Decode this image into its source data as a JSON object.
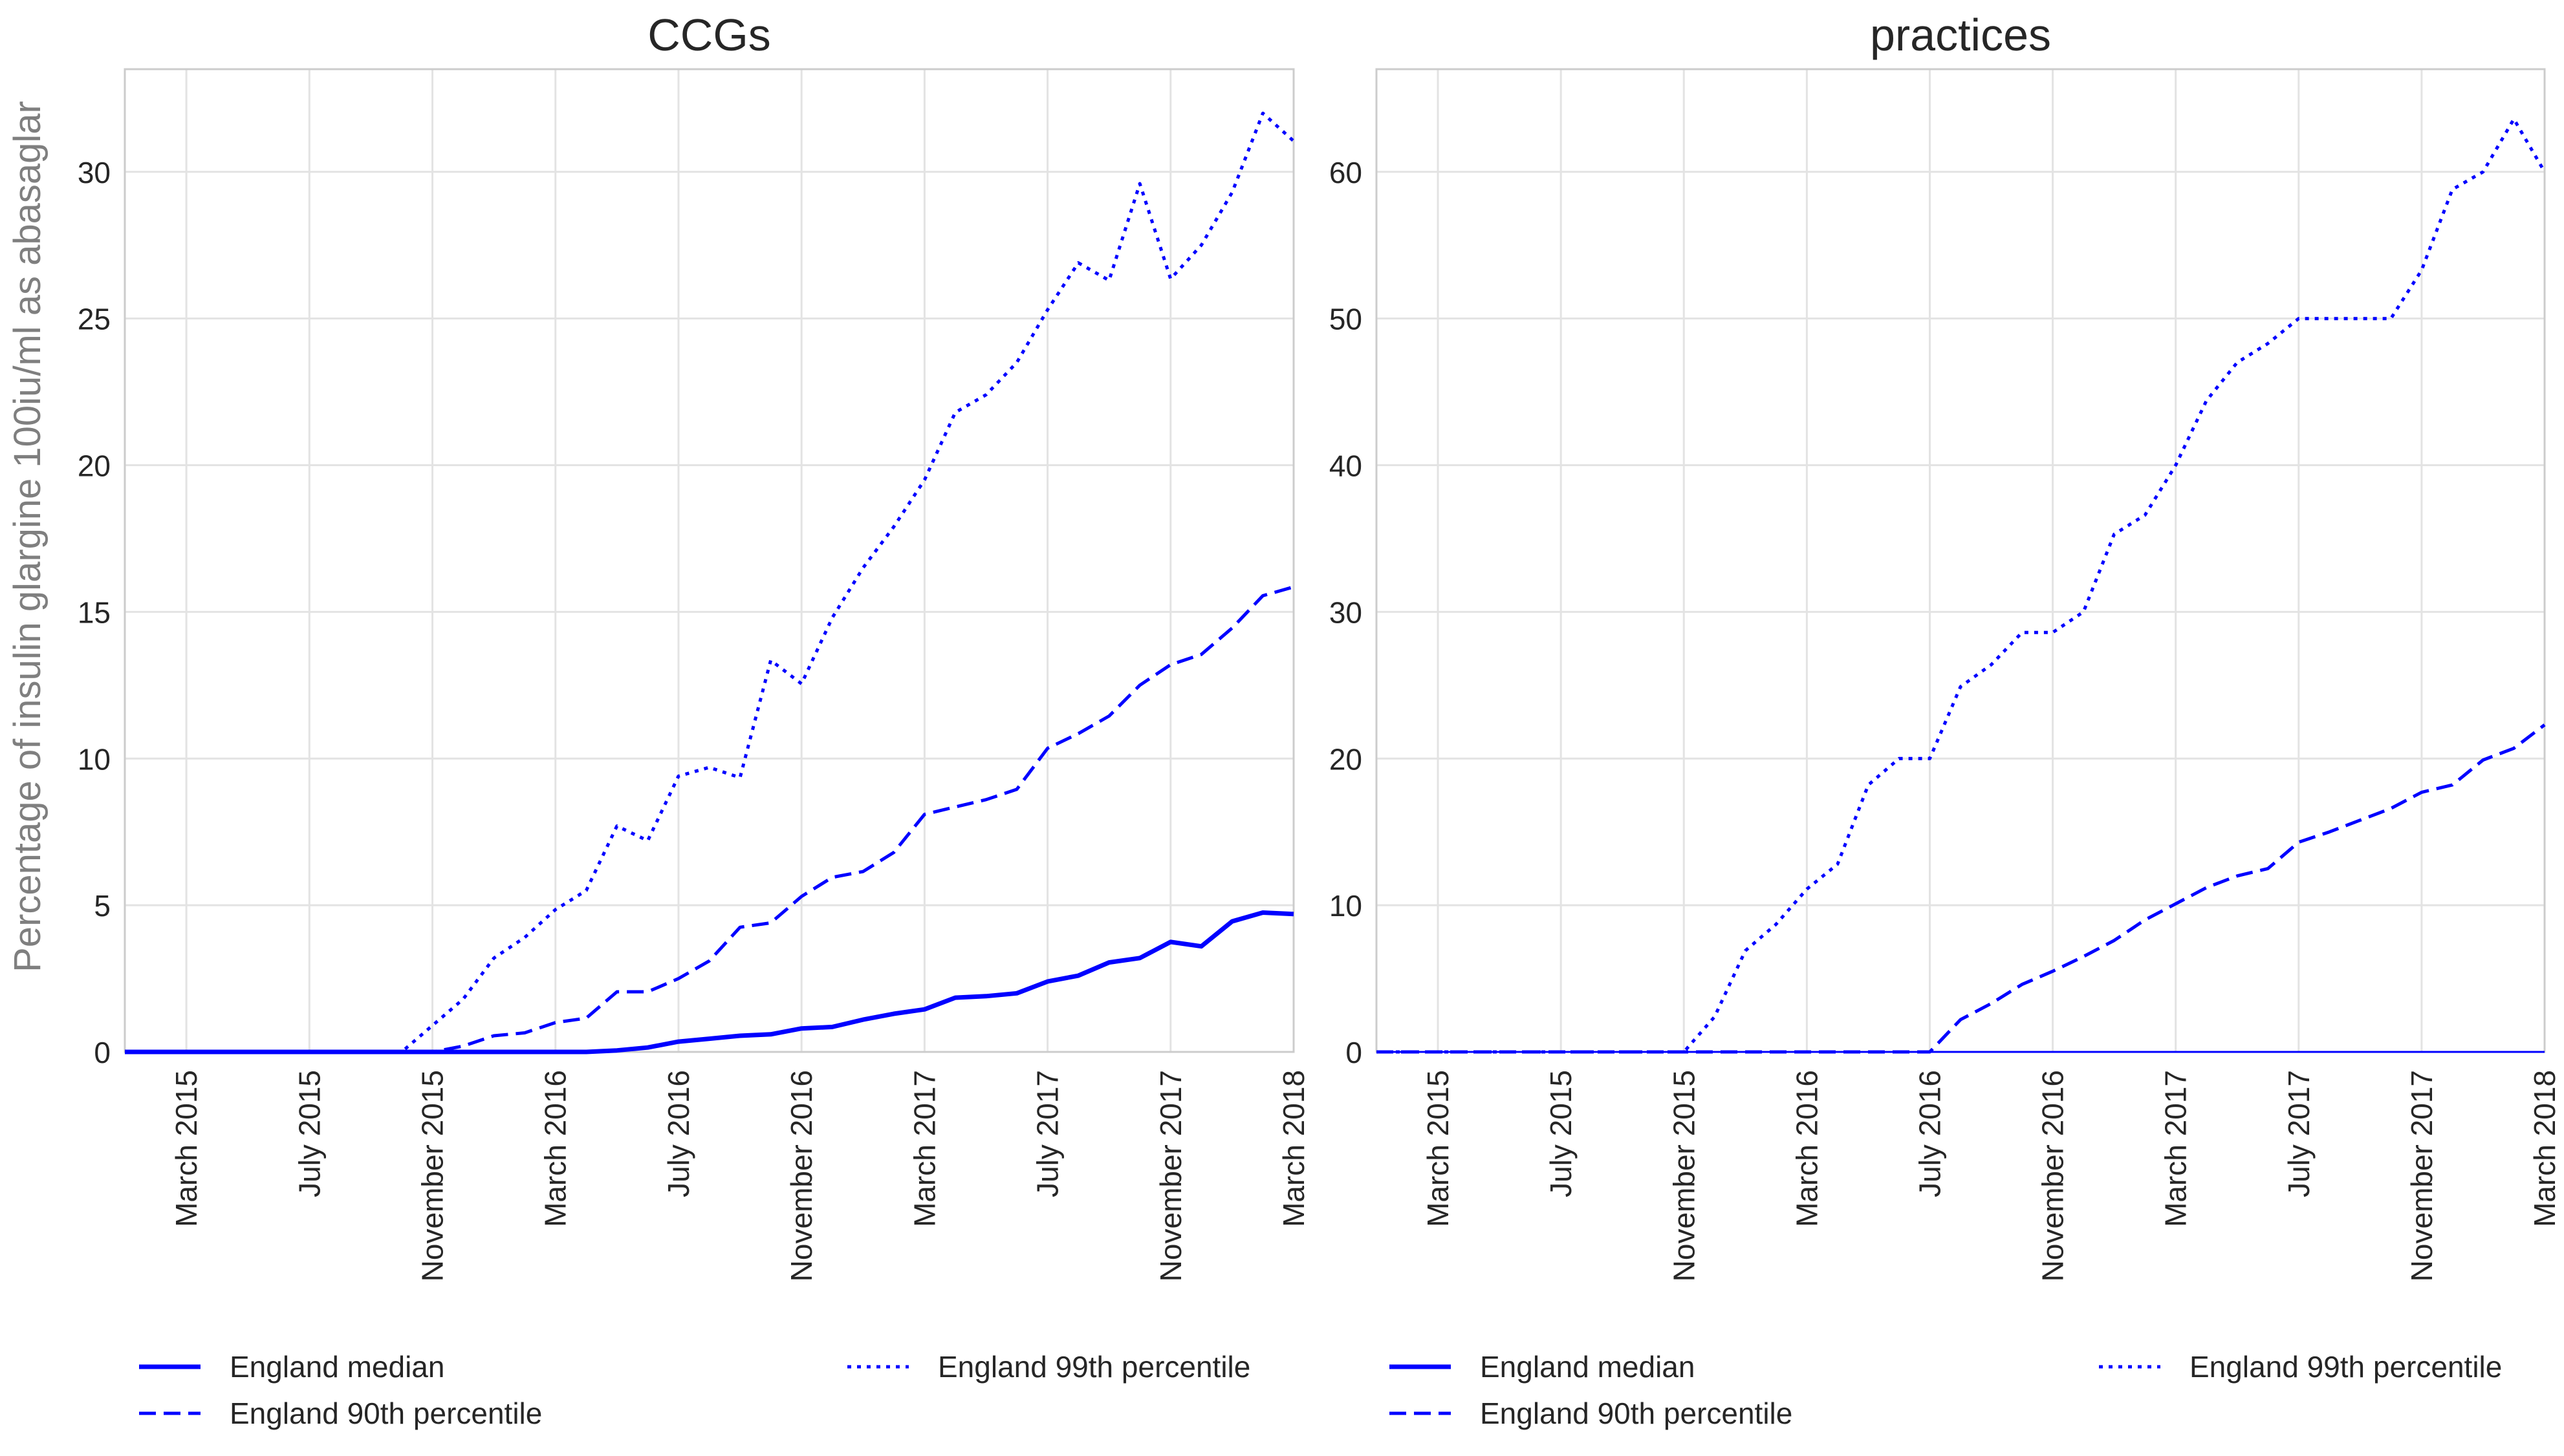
{
  "figure": {
    "ylabel": "Percentage of insulin glargine 100iu/ml as abasaglar",
    "line_color": "#0000ff"
  },
  "chart_data": [
    {
      "type": "line",
      "title": "CCGs",
      "ylabel": "Percentage of insulin glargine 100iu/ml as abasaglar",
      "xlabel": "",
      "xlim": [
        "2015-01-01",
        "2018-03-01"
      ],
      "ylim": [
        0,
        33.5
      ],
      "yticks": [
        0,
        5,
        10,
        15,
        20,
        25,
        30
      ],
      "x_tick_labels": [
        "March 2015",
        "July 2015",
        "November 2015",
        "March 2016",
        "July 2016",
        "November 2016",
        "March 2017",
        "July 2017",
        "November 2017",
        "March 2018"
      ],
      "grid": true,
      "legend_position": "bottom",
      "x": [
        "2015-01-01",
        "2015-02-01",
        "2015-03-01",
        "2015-04-01",
        "2015-05-01",
        "2015-06-01",
        "2015-07-01",
        "2015-08-01",
        "2015-09-01",
        "2015-10-01",
        "2015-11-01",
        "2015-12-01",
        "2016-01-01",
        "2016-02-01",
        "2016-03-01",
        "2016-04-01",
        "2016-05-01",
        "2016-06-01",
        "2016-07-01",
        "2016-08-01",
        "2016-09-01",
        "2016-10-01",
        "2016-11-01",
        "2016-12-01",
        "2017-01-01",
        "2017-02-01",
        "2017-03-01",
        "2017-04-01",
        "2017-05-01",
        "2017-06-01",
        "2017-07-01",
        "2017-08-01",
        "2017-09-01",
        "2017-10-01",
        "2017-11-01",
        "2017-12-01",
        "2018-01-01",
        "2018-02-01",
        "2018-03-01"
      ],
      "series": [
        {
          "name": "England median",
          "style": "solid",
          "values": [
            0,
            0,
            0,
            0,
            0,
            0,
            0,
            0,
            0,
            0,
            0,
            0,
            0,
            0,
            0,
            0,
            0.05,
            0.15,
            0.35,
            0.45,
            0.55,
            0.6,
            0.8,
            0.85,
            1.1,
            1.3,
            1.45,
            1.85,
            1.9,
            2.0,
            2.4,
            2.6,
            3.05,
            3.2,
            3.75,
            3.6,
            4.45,
            4.75,
            4.7
          ]
        },
        {
          "name": "England 90th percentile",
          "style": "dashed",
          "values": [
            0,
            0,
            0,
            0,
            0,
            0,
            0,
            0,
            0,
            0,
            0,
            0.2,
            0.55,
            0.65,
            1.0,
            1.15,
            2.05,
            2.05,
            2.5,
            3.1,
            4.25,
            4.4,
            5.3,
            5.95,
            6.15,
            6.8,
            8.1,
            8.35,
            8.6,
            8.95,
            10.35,
            10.85,
            11.45,
            12.5,
            13.2,
            13.55,
            14.45,
            15.55,
            15.85
          ]
        },
        {
          "name": "England 99th percentile",
          "style": "dotted",
          "values": [
            0,
            0,
            0,
            0,
            0,
            0,
            0,
            0,
            0,
            0,
            0.9,
            1.8,
            3.2,
            3.9,
            4.85,
            5.5,
            7.7,
            7.2,
            9.4,
            9.7,
            9.35,
            13.35,
            12.55,
            14.8,
            16.5,
            17.9,
            19.5,
            21.8,
            22.4,
            23.5,
            25.3,
            26.9,
            26.3,
            29.6,
            26.35,
            27.5,
            29.3,
            32.0,
            31.05
          ]
        }
      ]
    },
    {
      "type": "line",
      "title": "practices",
      "ylabel": "",
      "xlabel": "",
      "xlim": [
        "2015-01-01",
        "2018-03-01"
      ],
      "ylim": [
        0,
        67
      ],
      "yticks": [
        0,
        10,
        20,
        30,
        40,
        50,
        60
      ],
      "x_tick_labels": [
        "March 2015",
        "July 2015",
        "November 2015",
        "March 2016",
        "July 2016",
        "November 2016",
        "March 2017",
        "July 2017",
        "November 2017",
        "March 2018"
      ],
      "grid": true,
      "legend_position": "bottom",
      "x": [
        "2015-01-01",
        "2015-02-01",
        "2015-03-01",
        "2015-04-01",
        "2015-05-01",
        "2015-06-01",
        "2015-07-01",
        "2015-08-01",
        "2015-09-01",
        "2015-10-01",
        "2015-11-01",
        "2015-12-01",
        "2016-01-01",
        "2016-02-01",
        "2016-03-01",
        "2016-04-01",
        "2016-05-01",
        "2016-06-01",
        "2016-07-01",
        "2016-08-01",
        "2016-09-01",
        "2016-10-01",
        "2016-11-01",
        "2016-12-01",
        "2017-01-01",
        "2017-02-01",
        "2017-03-01",
        "2017-04-01",
        "2017-05-01",
        "2017-06-01",
        "2017-07-01",
        "2017-08-01",
        "2017-09-01",
        "2017-10-01",
        "2017-11-01",
        "2017-12-01",
        "2018-01-01",
        "2018-02-01",
        "2018-03-01"
      ],
      "series": [
        {
          "name": "England median",
          "style": "solid",
          "values": [
            0,
            0,
            0,
            0,
            0,
            0,
            0,
            0,
            0,
            0,
            0,
            0,
            0,
            0,
            0,
            0,
            0,
            0,
            0,
            0,
            0,
            0,
            0,
            0,
            0,
            0,
            0,
            0,
            0,
            0,
            0,
            0,
            0,
            0,
            0,
            0,
            0,
            0,
            0
          ]
        },
        {
          "name": "England 90th percentile",
          "style": "dashed",
          "values": [
            0,
            0,
            0,
            0,
            0,
            0,
            0,
            0,
            0,
            0,
            0,
            0,
            0,
            0,
            0,
            0,
            0,
            0,
            0,
            2.2,
            3.3,
            4.6,
            5.5,
            6.5,
            7.6,
            9.0,
            10.1,
            11.2,
            12.0,
            12.5,
            14.3,
            15.0,
            15.8,
            16.6,
            17.7,
            18.2,
            19.9,
            20.7,
            22.3
          ]
        },
        {
          "name": "England 99th percentile",
          "style": "dotted",
          "values": [
            0,
            0,
            0,
            0,
            0,
            0,
            0,
            0,
            0,
            0,
            0,
            2.4,
            6.9,
            8.7,
            11.1,
            12.8,
            18.2,
            20.0,
            20.0,
            24.9,
            26.4,
            28.6,
            28.6,
            30.0,
            35.3,
            36.6,
            40.0,
            44.4,
            47.0,
            48.3,
            50.0,
            50.0,
            50.0,
            50.0,
            53.3,
            58.8,
            60.0,
            63.6,
            60.0
          ]
        }
      ]
    }
  ]
}
